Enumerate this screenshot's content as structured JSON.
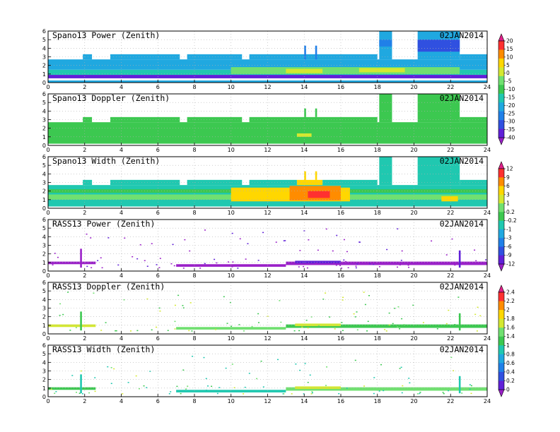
{
  "figure": {
    "date": "02JAN2014"
  },
  "chart_data": [
    {
      "type": "heatmap",
      "title": "Spano13 Power (Zenith)",
      "date_label": "02JAN2014",
      "xlim": [
        0,
        24
      ],
      "ylim": [
        0,
        6
      ],
      "x_ticks": [
        0,
        2,
        4,
        6,
        8,
        10,
        12,
        14,
        16,
        18,
        20,
        22,
        24
      ],
      "x_tick_labels": [
        "0",
        "2",
        "4",
        "6",
        "8",
        "10",
        "12",
        "14",
        "16",
        "18",
        "20",
        "22",
        "24"
      ],
      "y_ticks": [
        0,
        1,
        2,
        3,
        4,
        5,
        6
      ],
      "grid": true,
      "colorbar": [
        "20",
        "15",
        "10",
        "5",
        "0",
        "-5",
        "-10",
        "-15",
        "-20",
        "-25",
        "-30",
        "-35",
        "-40"
      ],
      "colorbar_colors": [
        "#e0208a",
        "#ff3030",
        "#ff8c00",
        "#ffd700",
        "#d4e830",
        "#70e070",
        "#3cc850",
        "#20c8b0",
        "#20a8e0",
        "#2080e8",
        "#3050e0",
        "#6020d8",
        "#9a20c8"
      ],
      "regions": [
        {
          "x0": 0.0,
          "x1": 24.0,
          "y0": 0.0,
          "y1": 0.25,
          "color": "#20a8e0"
        },
        {
          "x0": 0.0,
          "x1": 24.0,
          "y0": 0.5,
          "y1": 0.9,
          "color": "#6020d8"
        },
        {
          "x0": 0.0,
          "x1": 24.0,
          "y0": 0.9,
          "y1": 1.5,
          "color": "#20c8b0"
        },
        {
          "x0": 0.0,
          "x1": 24.0,
          "y0": 1.5,
          "y1": 2.7,
          "color": "#20a8e0"
        },
        {
          "x0": 10.0,
          "x1": 22.5,
          "y0": 1.0,
          "y1": 1.8,
          "color": "#70e070"
        },
        {
          "x0": 13.0,
          "x1": 15.0,
          "y0": 1.1,
          "y1": 1.6,
          "color": "#d4e830"
        },
        {
          "x0": 17.0,
          "x1": 19.5,
          "y0": 1.2,
          "y1": 1.7,
          "color": "#d4e830"
        },
        {
          "x0": 1.9,
          "x1": 2.4,
          "y0": 2.7,
          "y1": 3.3,
          "color": "#20a8e0"
        },
        {
          "x0": 3.4,
          "x1": 7.2,
          "y0": 2.7,
          "y1": 3.3,
          "color": "#20a8e0"
        },
        {
          "x0": 7.6,
          "x1": 10.6,
          "y0": 2.7,
          "y1": 3.3,
          "color": "#20a8e0"
        },
        {
          "x0": 11.0,
          "x1": 18.0,
          "y0": 2.7,
          "y1": 3.3,
          "color": "#20a8e0"
        },
        {
          "x0": 18.1,
          "x1": 18.8,
          "y0": 2.7,
          "y1": 6.0,
          "color": "#20a8e0"
        },
        {
          "x0": 18.1,
          "x1": 18.8,
          "y0": 4.2,
          "y1": 5.0,
          "color": "#2080e8"
        },
        {
          "x0": 20.2,
          "x1": 22.5,
          "y0": 2.7,
          "y1": 6.0,
          "color": "#20a8e0"
        },
        {
          "x0": 20.2,
          "x1": 22.5,
          "y0": 3.6,
          "y1": 5.0,
          "color": "#3050e0"
        },
        {
          "x0": 22.5,
          "x1": 24.0,
          "y0": 2.7,
          "y1": 3.3,
          "color": "#20a8e0"
        },
        {
          "x0": 14.0,
          "x1": 14.1,
          "y0": 2.7,
          "y1": 4.3,
          "color": "#2080e8"
        },
        {
          "x0": 14.6,
          "x1": 14.7,
          "y0": 2.7,
          "y1": 4.3,
          "color": "#2080e8"
        }
      ]
    },
    {
      "type": "heatmap",
      "title": "Spano13 Doppler (Zenith)",
      "date_label": "02JAN2014",
      "xlim": [
        0,
        24
      ],
      "ylim": [
        0,
        6
      ],
      "x_ticks": [
        0,
        2,
        4,
        6,
        8,
        10,
        12,
        14,
        16,
        18,
        20,
        22,
        24
      ],
      "x_tick_labels": [
        "0",
        "2",
        "4",
        "6",
        "8",
        "10",
        "12",
        "14",
        "16",
        "18",
        "20",
        "22",
        "24"
      ],
      "y_ticks": [
        0,
        1,
        2,
        3,
        4,
        5,
        6
      ],
      "grid": true,
      "regions": [
        {
          "x0": 0.0,
          "x1": 24.0,
          "y0": 0.2,
          "y1": 2.7,
          "color": "#3cc850"
        },
        {
          "x0": 1.9,
          "x1": 2.4,
          "y0": 2.7,
          "y1": 3.3,
          "color": "#3cc850"
        },
        {
          "x0": 3.4,
          "x1": 7.2,
          "y0": 2.7,
          "y1": 3.3,
          "color": "#3cc850"
        },
        {
          "x0": 7.6,
          "x1": 10.6,
          "y0": 2.7,
          "y1": 3.3,
          "color": "#3cc850"
        },
        {
          "x0": 11.0,
          "x1": 18.0,
          "y0": 2.7,
          "y1": 3.3,
          "color": "#3cc850"
        },
        {
          "x0": 18.1,
          "x1": 18.8,
          "y0": 2.7,
          "y1": 6.0,
          "color": "#3cc850"
        },
        {
          "x0": 20.2,
          "x1": 22.5,
          "y0": 2.7,
          "y1": 6.0,
          "color": "#3cc850"
        },
        {
          "x0": 22.5,
          "x1": 24.0,
          "y0": 2.7,
          "y1": 3.3,
          "color": "#3cc850"
        },
        {
          "x0": 13.6,
          "x1": 14.4,
          "y0": 1.0,
          "y1": 1.4,
          "color": "#d4e830"
        },
        {
          "x0": 14.0,
          "x1": 14.1,
          "y0": 3.3,
          "y1": 4.3,
          "color": "#3cc850"
        },
        {
          "x0": 14.6,
          "x1": 14.7,
          "y0": 3.3,
          "y1": 4.3,
          "color": "#3cc850"
        }
      ]
    },
    {
      "type": "heatmap",
      "title": "Spano13 Width (Zenith)",
      "date_label": "02JAN2014",
      "xlim": [
        0,
        24
      ],
      "ylim": [
        0,
        6
      ],
      "x_ticks": [
        0,
        2,
        4,
        6,
        8,
        10,
        12,
        14,
        16,
        18,
        20,
        22,
        24
      ],
      "x_tick_labels": [
        "0",
        "2",
        "4",
        "6",
        "8",
        "10",
        "12",
        "14",
        "16",
        "18",
        "20",
        "22",
        "24"
      ],
      "y_ticks": [
        0,
        1,
        2,
        3,
        4,
        5,
        6
      ],
      "grid": true,
      "colorbar": [
        "12",
        "9",
        "6",
        "3",
        "1",
        "0.2",
        "-0.2",
        "-1",
        "-3",
        "-6",
        "-9",
        "-12"
      ],
      "colorbar_colors": [
        "#e0208a",
        "#ff3030",
        "#ff8c00",
        "#ffd700",
        "#d4e830",
        "#70e070",
        "#3cc850",
        "#20c8b0",
        "#20a8e0",
        "#2080e8",
        "#3050e0",
        "#6020d8",
        "#9a20c8"
      ],
      "regions": [
        {
          "x0": 0.0,
          "x1": 24.0,
          "y0": 0.2,
          "y1": 2.7,
          "color": "#20c8b0"
        },
        {
          "x0": 0.0,
          "x1": 24.0,
          "y0": 1.0,
          "y1": 1.6,
          "color": "#70e070"
        },
        {
          "x0": 0.0,
          "x1": 24.0,
          "y0": 1.8,
          "y1": 2.2,
          "color": "#3cc850"
        },
        {
          "x0": 10.0,
          "x1": 16.5,
          "y0": 0.8,
          "y1": 2.4,
          "color": "#ffd700"
        },
        {
          "x0": 13.2,
          "x1": 16.0,
          "y0": 0.9,
          "y1": 2.6,
          "color": "#ff8c00"
        },
        {
          "x0": 14.2,
          "x1": 15.4,
          "y0": 1.2,
          "y1": 2.0,
          "color": "#ff3030"
        },
        {
          "x0": 13.6,
          "x1": 15.0,
          "y0": 2.7,
          "y1": 3.3,
          "color": "#ffd700"
        },
        {
          "x0": 1.9,
          "x1": 2.4,
          "y0": 2.7,
          "y1": 3.3,
          "color": "#20c8b0"
        },
        {
          "x0": 3.4,
          "x1": 7.2,
          "y0": 2.7,
          "y1": 3.3,
          "color": "#20c8b0"
        },
        {
          "x0": 7.6,
          "x1": 10.6,
          "y0": 2.7,
          "y1": 3.3,
          "color": "#20c8b0"
        },
        {
          "x0": 11.0,
          "x1": 13.6,
          "y0": 2.7,
          "y1": 3.3,
          "color": "#20c8b0"
        },
        {
          "x0": 15.0,
          "x1": 18.0,
          "y0": 2.7,
          "y1": 3.3,
          "color": "#20c8b0"
        },
        {
          "x0": 18.1,
          "x1": 18.8,
          "y0": 2.7,
          "y1": 6.0,
          "color": "#20c8b0"
        },
        {
          "x0": 20.2,
          "x1": 22.5,
          "y0": 2.7,
          "y1": 6.0,
          "color": "#20c8b0"
        },
        {
          "x0": 21.5,
          "x1": 22.4,
          "y0": 0.8,
          "y1": 1.4,
          "color": "#ffd700"
        },
        {
          "x0": 22.5,
          "x1": 24.0,
          "y0": 2.7,
          "y1": 3.3,
          "color": "#20c8b0"
        },
        {
          "x0": 14.0,
          "x1": 14.1,
          "y0": 3.3,
          "y1": 4.3,
          "color": "#ffd700"
        },
        {
          "x0": 14.6,
          "x1": 14.7,
          "y0": 3.3,
          "y1": 4.3,
          "color": "#ffd700"
        }
      ]
    },
    {
      "type": "heatmap",
      "title": "RASS13 Power (Zenith)",
      "date_label": "02JAN2014",
      "xlim": [
        0,
        24
      ],
      "ylim": [
        0,
        6
      ],
      "x_ticks": [
        0,
        2,
        4,
        6,
        8,
        10,
        12,
        14,
        16,
        18,
        20,
        22,
        24
      ],
      "x_tick_labels": [
        "0",
        "2",
        "4",
        "6",
        "8",
        "10",
        "12",
        "14",
        "16",
        "18",
        "20",
        "22",
        "24"
      ],
      "y_ticks": [
        0,
        1,
        2,
        3,
        4,
        5,
        6
      ],
      "grid": true,
      "regions": [
        {
          "x0": 0.0,
          "x1": 2.6,
          "y0": 0.8,
          "y1": 1.1,
          "color": "#9a20c8"
        },
        {
          "x0": 1.75,
          "x1": 1.85,
          "y0": 0.4,
          "y1": 2.6,
          "color": "#9a20c8"
        },
        {
          "x0": 7.0,
          "x1": 13.0,
          "y0": 0.5,
          "y1": 0.8,
          "color": "#9a20c8"
        },
        {
          "x0": 13.0,
          "x1": 24.0,
          "y0": 0.7,
          "y1": 1.1,
          "color": "#9a20c8"
        },
        {
          "x0": 13.5,
          "x1": 16.0,
          "y0": 0.9,
          "y1": 1.2,
          "color": "#6020d8"
        },
        {
          "x0": 22.45,
          "x1": 22.55,
          "y0": 0.4,
          "y1": 2.4,
          "color": "#6020d8"
        }
      ]
    },
    {
      "type": "heatmap",
      "title": "RASS13 Doppler (Zenith)",
      "date_label": "02JAN2014",
      "xlim": [
        0,
        24
      ],
      "ylim": [
        0,
        6
      ],
      "x_ticks": [
        0,
        2,
        4,
        6,
        8,
        10,
        12,
        14,
        16,
        18,
        20,
        22,
        24
      ],
      "x_tick_labels": [
        "0",
        "2",
        "4",
        "6",
        "8",
        "10",
        "12",
        "14",
        "16",
        "18",
        "20",
        "22",
        "24"
      ],
      "y_ticks": [
        0,
        1,
        2,
        3,
        4,
        5,
        6
      ],
      "grid": true,
      "colorbar": [
        "2.4",
        "2.2",
        "2",
        "1.8",
        "1.6",
        "1.4",
        "1",
        "0.8",
        "0.6",
        "0.4",
        "0.2",
        "0"
      ],
      "colorbar_colors": [
        "#e0208a",
        "#ff3030",
        "#ff8c00",
        "#ffd700",
        "#d4e830",
        "#70e070",
        "#3cc850",
        "#20c8b0",
        "#20a8e0",
        "#2080e8",
        "#3050e0",
        "#6020d8",
        "#9a20c8"
      ],
      "regions": [
        {
          "x0": 0.0,
          "x1": 2.6,
          "y0": 0.8,
          "y1": 1.1,
          "color": "#d4e830"
        },
        {
          "x0": 1.75,
          "x1": 1.85,
          "y0": 0.4,
          "y1": 2.6,
          "color": "#3cc850"
        },
        {
          "x0": 7.0,
          "x1": 13.0,
          "y0": 0.5,
          "y1": 0.8,
          "color": "#70e070"
        },
        {
          "x0": 13.0,
          "x1": 24.0,
          "y0": 0.7,
          "y1": 1.1,
          "color": "#3cc850"
        },
        {
          "x0": 13.5,
          "x1": 16.0,
          "y0": 0.9,
          "y1": 1.2,
          "color": "#d4e830"
        },
        {
          "x0": 22.45,
          "x1": 22.55,
          "y0": 0.4,
          "y1": 2.4,
          "color": "#3cc850"
        }
      ]
    },
    {
      "type": "heatmap",
      "title": "RASS13 Width (Zenith)",
      "date_label": "02JAN2014",
      "xlim": [
        0,
        24
      ],
      "ylim": [
        0,
        6
      ],
      "x_ticks": [
        0,
        2,
        4,
        6,
        8,
        10,
        12,
        14,
        16,
        18,
        20,
        22,
        24
      ],
      "x_tick_labels": [
        "0",
        "2",
        "4",
        "6",
        "8",
        "10",
        "12",
        "14",
        "16",
        "18",
        "20",
        "22",
        "24"
      ],
      "y_ticks": [
        0,
        1,
        2,
        3,
        4,
        5,
        6
      ],
      "grid": true,
      "regions": [
        {
          "x0": 0.0,
          "x1": 2.6,
          "y0": 0.8,
          "y1": 1.1,
          "color": "#3cc850"
        },
        {
          "x0": 1.75,
          "x1": 1.85,
          "y0": 0.4,
          "y1": 2.6,
          "color": "#20c8b0"
        },
        {
          "x0": 7.0,
          "x1": 13.0,
          "y0": 0.5,
          "y1": 0.8,
          "color": "#20c8b0"
        },
        {
          "x0": 13.0,
          "x1": 24.0,
          "y0": 0.7,
          "y1": 1.1,
          "color": "#70e070"
        },
        {
          "x0": 13.5,
          "x1": 16.0,
          "y0": 0.9,
          "y1": 1.2,
          "color": "#d4e830"
        },
        {
          "x0": 22.45,
          "x1": 22.55,
          "y0": 0.4,
          "y1": 2.4,
          "color": "#20c8b0"
        }
      ]
    }
  ]
}
